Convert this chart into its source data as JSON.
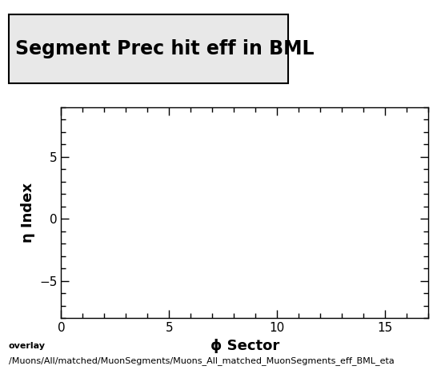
{
  "title": "Segment Prec hit eff in BML",
  "xlabel": "ϕ Sector",
  "ylabel": "η Index",
  "xlim": [
    0,
    17
  ],
  "ylim": [
    -8,
    9
  ],
  "xticks": [
    0,
    5,
    10,
    15
  ],
  "yticks": [
    -5,
    0,
    5
  ],
  "background_color": "#ffffff",
  "plot_bg_color": "#ffffff",
  "title_bg_color": "#e8e8e8",
  "footer_line1": "overlay",
  "footer_line2": "/Muons/All/matched/MuonSegments/Muons_All_matched_MuonSegments_eff_BML_eta",
  "title_fontsize": 17,
  "axis_label_fontsize": 13,
  "tick_fontsize": 11,
  "footer_fontsize": 8
}
